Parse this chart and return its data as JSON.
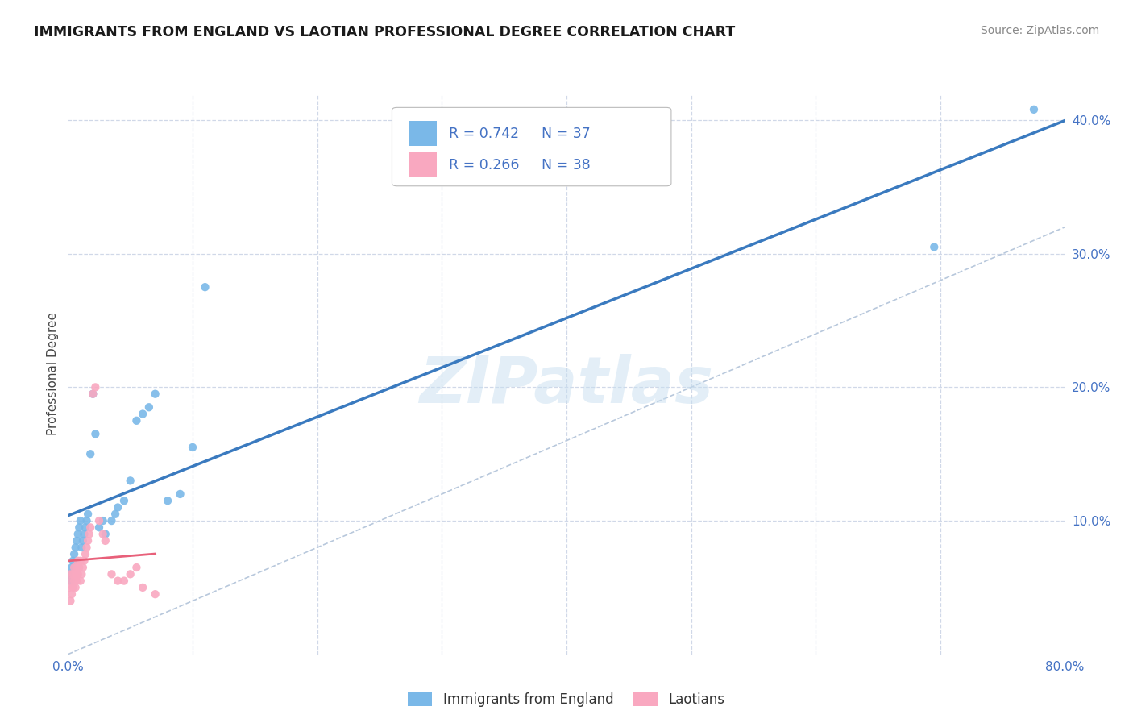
{
  "title": "IMMIGRANTS FROM ENGLAND VS LAOTIAN PROFESSIONAL DEGREE CORRELATION CHART",
  "source": "Source: ZipAtlas.com",
  "ylabel": "Professional Degree",
  "xlim": [
    0.0,
    0.8
  ],
  "ylim": [
    0.0,
    0.42
  ],
  "blue_color": "#7ab8e8",
  "pink_color": "#f9a8c0",
  "trend_blue_color": "#3a7abf",
  "trend_pink_color": "#e8607a",
  "trend_gray_color": "#c0c8d8",
  "watermark": "ZIPatlas",
  "background_color": "#ffffff",
  "grid_color": "#d0d8e8",
  "england_x": [
    0.001,
    0.002,
    0.003,
    0.004,
    0.005,
    0.006,
    0.007,
    0.008,
    0.009,
    0.01,
    0.011,
    0.012,
    0.013,
    0.014,
    0.015,
    0.016,
    0.018,
    0.02,
    0.022,
    0.025,
    0.028,
    0.03,
    0.035,
    0.038,
    0.04,
    0.045,
    0.05,
    0.055,
    0.06,
    0.065,
    0.07,
    0.08,
    0.09,
    0.1,
    0.11,
    0.695,
    0.775
  ],
  "england_y": [
    0.06,
    0.055,
    0.065,
    0.07,
    0.075,
    0.08,
    0.085,
    0.09,
    0.095,
    0.1,
    0.08,
    0.085,
    0.09,
    0.095,
    0.1,
    0.105,
    0.15,
    0.195,
    0.165,
    0.095,
    0.1,
    0.09,
    0.1,
    0.105,
    0.11,
    0.115,
    0.13,
    0.175,
    0.18,
    0.185,
    0.195,
    0.115,
    0.12,
    0.155,
    0.275,
    0.305,
    0.408
  ],
  "laotian_x": [
    0.001,
    0.002,
    0.002,
    0.003,
    0.003,
    0.004,
    0.004,
    0.005,
    0.005,
    0.006,
    0.006,
    0.007,
    0.007,
    0.008,
    0.008,
    0.009,
    0.01,
    0.01,
    0.011,
    0.012,
    0.013,
    0.014,
    0.015,
    0.016,
    0.017,
    0.018,
    0.02,
    0.022,
    0.025,
    0.028,
    0.03,
    0.035,
    0.04,
    0.045,
    0.05,
    0.055,
    0.06,
    0.07
  ],
  "laotian_y": [
    0.05,
    0.06,
    0.04,
    0.045,
    0.055,
    0.05,
    0.06,
    0.055,
    0.065,
    0.05,
    0.06,
    0.055,
    0.065,
    0.07,
    0.06,
    0.065,
    0.07,
    0.055,
    0.06,
    0.065,
    0.07,
    0.075,
    0.08,
    0.085,
    0.09,
    0.095,
    0.195,
    0.2,
    0.1,
    0.09,
    0.085,
    0.06,
    0.055,
    0.055,
    0.06,
    0.065,
    0.05,
    0.045
  ],
  "legend_r1": "R = 0.742",
  "legend_n1": "N = 37",
  "legend_r2": "R = 0.266",
  "legend_n2": "N = 38"
}
